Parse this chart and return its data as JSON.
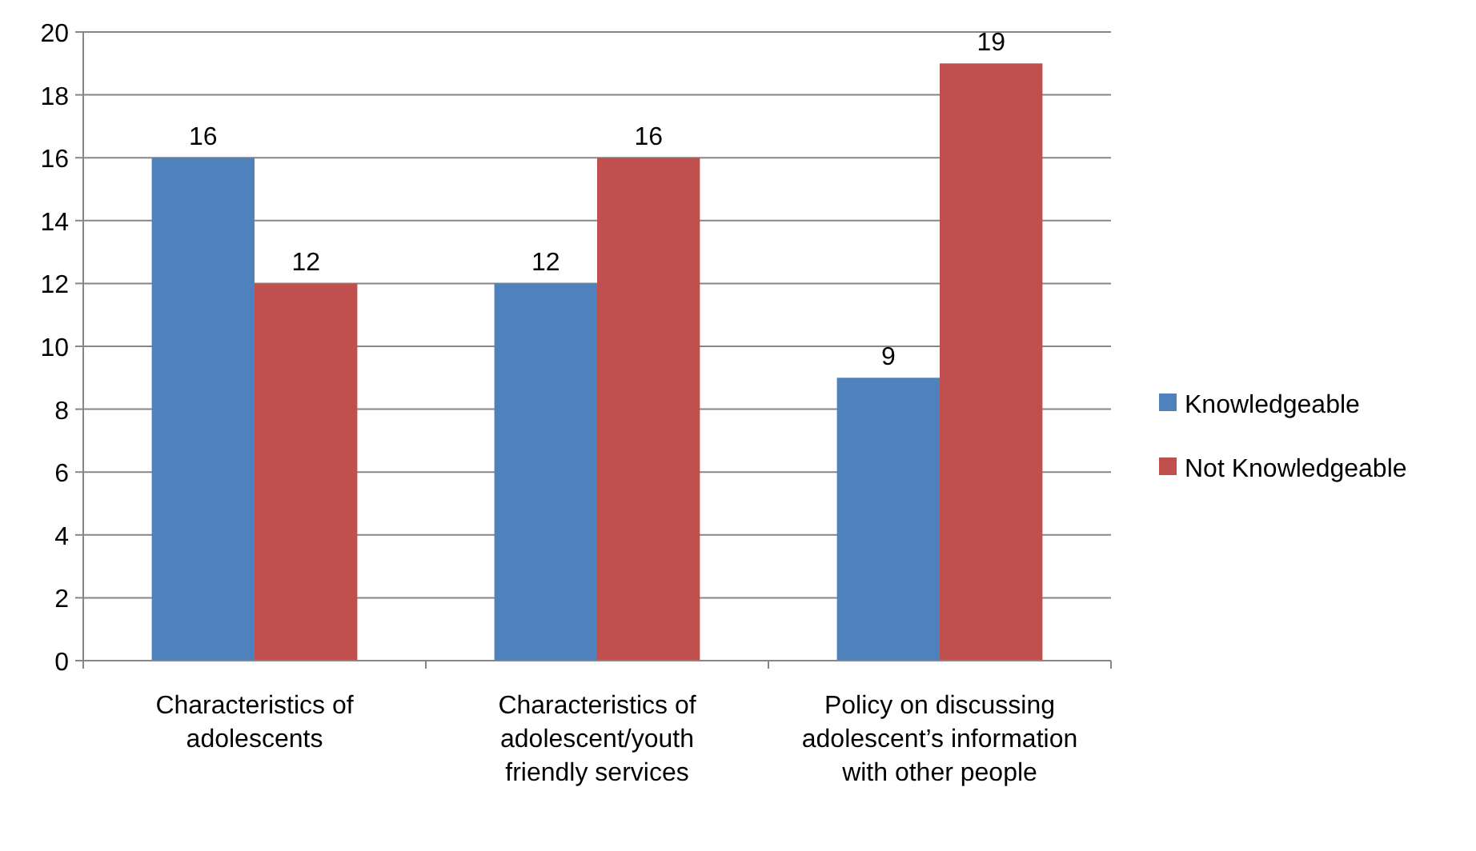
{
  "chart_data": {
    "type": "bar",
    "categories": [
      "Characteristics of adolescents",
      "Characteristics of adolescent/youth friendly services",
      "Policy on discussing adolescent’s information with other people"
    ],
    "series": [
      {
        "name": "Knowledgeable",
        "color": "#4f81bd",
        "values": [
          16,
          12,
          9
        ]
      },
      {
        "name": "Not Knowledgeable",
        "color": "#c0504d",
        "values": [
          12,
          16,
          19
        ]
      }
    ],
    "ylim": [
      0,
      20
    ],
    "yticks": [
      0,
      2,
      4,
      6,
      8,
      10,
      12,
      14,
      16,
      18,
      20
    ],
    "grid": "y",
    "legend": "right",
    "data_labels": true
  }
}
